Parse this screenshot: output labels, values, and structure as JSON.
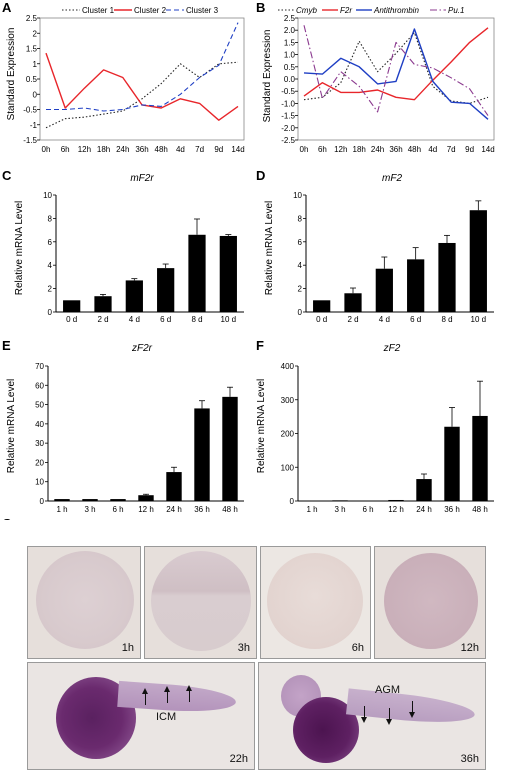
{
  "panels": {
    "A": "A",
    "B": "B",
    "C": "C",
    "D": "D",
    "E": "E",
    "F": "F",
    "G": "G"
  },
  "chart_data": [
    {
      "id": "A",
      "type": "line",
      "ylabel": "Standard Expression",
      "categories": [
        "0h",
        "6h",
        "12h",
        "18h",
        "24h",
        "36h",
        "48h",
        "4d",
        "7d",
        "9d",
        "14d"
      ],
      "ylim": [
        -1.5,
        2.5
      ],
      "yticks": [
        -1.5,
        -1,
        -0.5,
        0,
        0.5,
        1,
        1.5,
        2,
        2.5
      ],
      "yticklabels": [
        "-1.5",
        "-1",
        "-0.5",
        "0",
        "0.5",
        "1",
        "1.5",
        "2",
        "2.5"
      ],
      "series": [
        {
          "name": "Cluster 1",
          "color": "#222222",
          "dash": "1.5,2",
          "width": 1.1,
          "values": [
            -1.1,
            -0.8,
            -0.75,
            -0.65,
            -0.55,
            -0.15,
            0.35,
            1.0,
            0.55,
            1.0,
            1.05
          ]
        },
        {
          "name": "Cluster 2",
          "color": "#e8262b",
          "dash": "",
          "width": 1.4,
          "values": [
            1.35,
            -0.45,
            0.2,
            0.8,
            0.55,
            -0.35,
            -0.45,
            -0.15,
            -0.3,
            -0.85,
            -0.4
          ]
        },
        {
          "name": "Cluster 3",
          "color": "#1f3fc4",
          "dash": "5,3",
          "width": 1.1,
          "values": [
            -0.5,
            -0.5,
            -0.45,
            -0.55,
            -0.5,
            -0.35,
            -0.4,
            0.0,
            0.55,
            0.95,
            2.35
          ]
        }
      ]
    },
    {
      "id": "B",
      "type": "line",
      "ylabel": "Standard Expression",
      "categories": [
        "0h",
        "6h",
        "12h",
        "18h",
        "24h",
        "36h",
        "48h",
        "4d",
        "7d",
        "9d",
        "14d"
      ],
      "ylim": [
        -2.5,
        2.5
      ],
      "yticks": [
        -2.5,
        -2,
        -1.5,
        -1,
        -0.5,
        0,
        0.5,
        1,
        1.5,
        2,
        2.5
      ],
      "yticklabels": [
        "-2.5",
        "-2.0",
        "-1.5",
        "-1.0",
        "-0.5",
        "0.0",
        "0.5",
        "1.0",
        "1.5",
        "2.0",
        "2.5"
      ],
      "series": [
        {
          "name": "Cmyb",
          "color": "#222222",
          "dash": "1.5,2",
          "width": 1.1,
          "values": [
            -0.85,
            -0.75,
            -0.15,
            1.55,
            0.3,
            1.05,
            1.9,
            -0.3,
            -0.9,
            -1.0,
            -0.75
          ]
        },
        {
          "name": "F2r",
          "color": "#e8262b",
          "dash": "",
          "width": 1.4,
          "values": [
            -0.7,
            -0.15,
            -0.55,
            -0.55,
            -0.45,
            -0.75,
            -0.85,
            -0.05,
            0.7,
            1.5,
            2.1
          ]
        },
        {
          "name": "Antithrombin",
          "color": "#1f3fc4",
          "dash": "",
          "width": 1.4,
          "values": [
            0.25,
            0.2,
            0.85,
            0.5,
            -0.2,
            -0.1,
            2.05,
            -0.1,
            -0.95,
            -1.0,
            -1.65
          ]
        },
        {
          "name": "Pu.1",
          "color": "#8b3a8f",
          "dash": "7,2.5,1.5,2.5",
          "width": 1.1,
          "values": [
            2.2,
            -0.8,
            0.3,
            -0.3,
            -1.35,
            1.5,
            0.6,
            0.45,
            0.05,
            -0.4,
            -1.5
          ]
        }
      ]
    },
    {
      "id": "C",
      "type": "bar",
      "title": "mF2r",
      "ylabel": "Relative mRNA  Level",
      "categories": [
        "0 d",
        "2 d",
        "4 d",
        "6 d",
        "8 d",
        "10 d"
      ],
      "values": [
        1.0,
        1.35,
        2.7,
        3.75,
        6.6,
        6.5
      ],
      "errors": [
        0,
        0.15,
        0.15,
        0.35,
        1.35,
        0.12
      ],
      "ylim": [
        0,
        10
      ],
      "yticks": [
        0,
        2,
        4,
        6,
        8,
        10
      ],
      "yticklabels": [
        "0",
        "2",
        "4",
        "6",
        "8",
        "10"
      ]
    },
    {
      "id": "D",
      "type": "bar",
      "title": "mF2",
      "ylabel": "Relative mRNA  Level",
      "categories": [
        "0 d",
        "2 d",
        "4 d",
        "6 d",
        "8 d",
        "10 d"
      ],
      "values": [
        1.0,
        1.6,
        3.7,
        4.5,
        5.9,
        8.7
      ],
      "errors": [
        0,
        0.45,
        1.0,
        1.0,
        0.65,
        0.8
      ],
      "ylim": [
        0,
        10
      ],
      "yticks": [
        0,
        2,
        4,
        6,
        8,
        10
      ],
      "yticklabels": [
        "0",
        "2",
        "4",
        "6",
        "8",
        "10"
      ]
    },
    {
      "id": "E",
      "type": "bar",
      "title": "zF2r",
      "ylabel": "Relative mRNA  Level",
      "categories": [
        "1 h",
        "3 h",
        "6 h",
        "12 h",
        "24 h",
        "36 h",
        "48 h"
      ],
      "values": [
        1.0,
        1.0,
        1.0,
        3.0,
        15.0,
        48.0,
        54.0
      ],
      "errors": [
        0,
        0,
        0,
        0.5,
        2.5,
        4.0,
        5.0
      ],
      "ylim": [
        0,
        70
      ],
      "yticks": [
        0,
        10,
        20,
        30,
        40,
        50,
        60,
        70
      ],
      "yticklabels": [
        "0",
        "10",
        "20",
        "30",
        "40",
        "50",
        "60",
        "70"
      ]
    },
    {
      "id": "F",
      "type": "bar",
      "title": "zF2",
      "ylabel": "Relative mRNA  Level",
      "categories": [
        "1 h",
        "3 h",
        "6 h",
        "12 h",
        "24 h",
        "36 h",
        "48 h"
      ],
      "values": [
        1.0,
        2.0,
        1.0,
        3.0,
        65.0,
        220.0,
        252.0
      ],
      "errors": [
        0,
        0,
        0,
        0,
        15.0,
        57.0,
        103.0
      ],
      "ylim": [
        0,
        400
      ],
      "yticks": [
        0,
        100,
        200,
        300,
        400
      ],
      "yticklabels": [
        "0",
        "100",
        "200",
        "300",
        "400"
      ]
    }
  ],
  "embryos": [
    {
      "label": "1h"
    },
    {
      "label": "3h"
    },
    {
      "label": "6h"
    },
    {
      "label": "12h"
    },
    {
      "label": "22h",
      "annotation": "ICM"
    },
    {
      "label": "36h",
      "annotation": "AGM"
    }
  ]
}
